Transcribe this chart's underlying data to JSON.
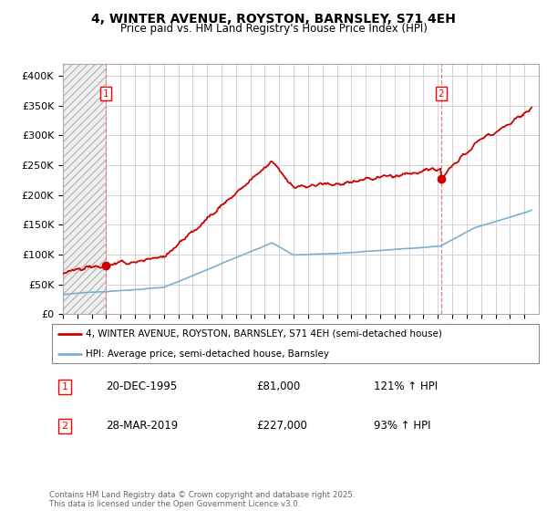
{
  "title1": "4, WINTER AVENUE, ROYSTON, BARNSLEY, S71 4EH",
  "title2": "Price paid vs. HM Land Registry's House Price Index (HPI)",
  "sale1_date": "20-DEC-1995",
  "sale1_price": 81000,
  "sale1_year": 1995.97,
  "sale1_label": "121% ↑ HPI",
  "sale2_date": "28-MAR-2019",
  "sale2_price": 227000,
  "sale2_year": 2019.22,
  "sale2_label": "93% ↑ HPI",
  "legend1": "4, WINTER AVENUE, ROYSTON, BARNSLEY, S71 4EH (semi-detached house)",
  "legend2": "HPI: Average price, semi-detached house, Barnsley",
  "footer": "Contains HM Land Registry data © Crown copyright and database right 2025.\nThis data is licensed under the Open Government Licence v3.0.",
  "line1_color": "#cc0000",
  "line2_color": "#7aafd4",
  "marker_color": "#cc0000",
  "grid_color": "#cccccc",
  "ylim": [
    0,
    420000
  ],
  "yticks": [
    0,
    50000,
    100000,
    150000,
    200000,
    250000,
    300000,
    350000,
    400000
  ],
  "xstart_year": 1993,
  "xend_year": 2026
}
